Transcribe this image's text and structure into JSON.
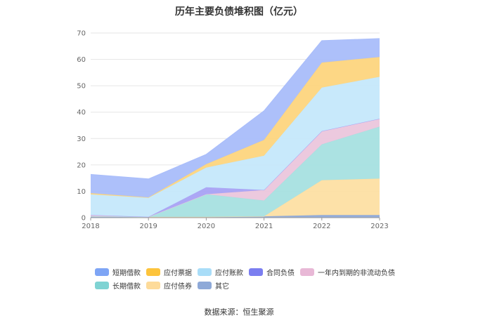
{
  "title": "历年主要负债堆积图（亿元）",
  "source": "数据来源：恒生聚源",
  "chart_data": {
    "type": "area",
    "stacked": true,
    "categories": [
      "2018",
      "2019",
      "2020",
      "2021",
      "2022",
      "2023"
    ],
    "ylim": [
      0,
      70
    ],
    "yticks": [
      0,
      10,
      20,
      30,
      40,
      50,
      60,
      70
    ],
    "grid": true,
    "legend_position": "bottom",
    "series": [
      {
        "name": "其它",
        "color": "#8ea9d8",
        "values": [
          0.5,
          0.3,
          0.3,
          0.5,
          1.0,
          1.0
        ]
      },
      {
        "name": "应付债券",
        "color": "#fddfa3",
        "values": [
          0,
          0,
          0,
          0,
          13.2,
          13.8
        ]
      },
      {
        "name": "长期借款",
        "color": "#a6e0e0",
        "values": [
          0,
          0,
          8.6,
          6.0,
          13.6,
          19.7
        ]
      },
      {
        "name": "一年内到期的非流动负债",
        "color": "#ebc6dc",
        "values": [
          0.5,
          0,
          0,
          4.0,
          5.0,
          3.0
        ]
      },
      {
        "name": "合同负债",
        "color": "#a8a2f4",
        "values": [
          0,
          0,
          2.6,
          0,
          0,
          0
        ]
      },
      {
        "name": "应付账款",
        "color": "#c5e8fb",
        "values": [
          7.8,
          7.2,
          7.5,
          13.0,
          16.5,
          15.9
        ]
      },
      {
        "name": "应付票据",
        "color": "#fdd57e",
        "values": [
          0.5,
          0.2,
          1.3,
          6.0,
          9.5,
          7.5
        ]
      },
      {
        "name": "短期借款",
        "color": "#a9bdfa",
        "values": [
          7.1,
          7.0,
          3.7,
          11.0,
          8.3,
          7.0
        ]
      }
    ],
    "legend": [
      [
        "短期借款",
        "应付票据",
        "应付账款",
        "合同负债",
        "一年内到期的非流动负债"
      ],
      [
        "长期借款",
        "应付债券",
        "其它"
      ]
    ],
    "legend_colors": {
      "短期借款": "#7ea5f5",
      "应付票据": "#fdc43c",
      "应付账款": "#a9ddf8",
      "合同负债": "#7b7ef0",
      "一年内到期的非流动负债": "#e8b8d6",
      "长期借款": "#7fd3d3",
      "应付债券": "#fddb9a",
      "其它": "#8ea9d8"
    }
  }
}
